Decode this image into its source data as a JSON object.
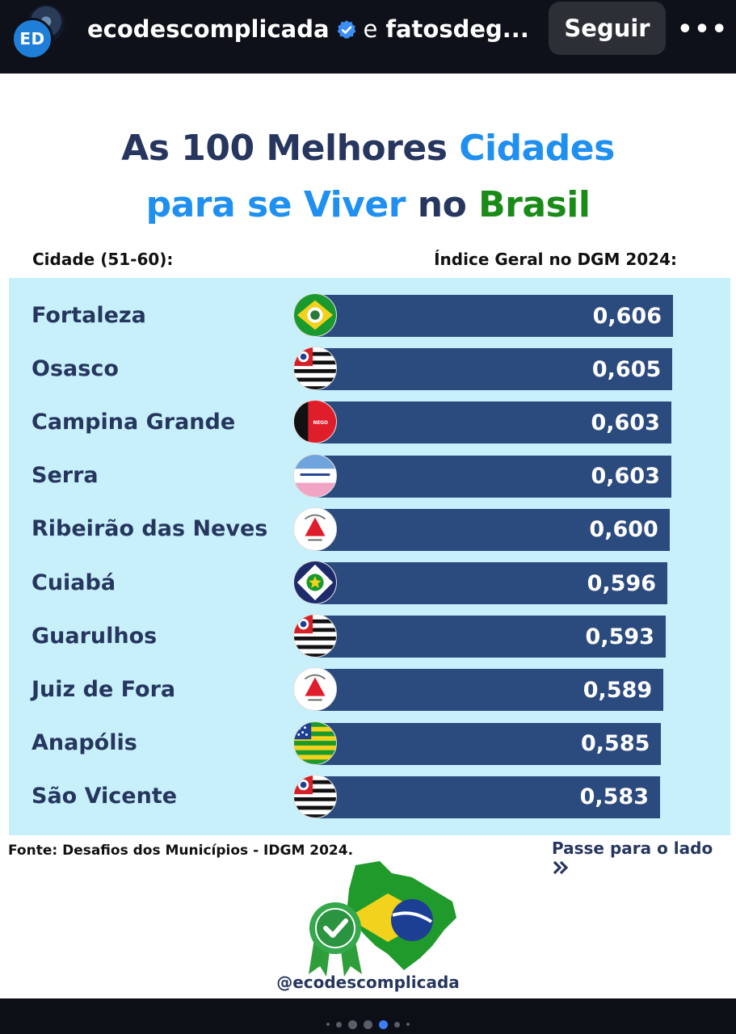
{
  "header": {
    "avatar_text": "ED",
    "account_name": "ecodescomplicada",
    "connector": "e",
    "collaborator": "fatosdeg...",
    "follow_label": "Seguir",
    "more_label": "•••"
  },
  "post": {
    "title_line1_a": "As 100 Melhores",
    "title_line1_b": "Cidades",
    "title_line2_a": "para se Viver",
    "title_line2_b": "no",
    "title_line2_c": "Brasil",
    "col_city": "Cidade (51-60):",
    "col_index": "Índice Geral no DGM 2024:",
    "source": "Fonte: Desafios dos Municípios - IDGM 2024.",
    "swipe": "Passe para o lado",
    "handle": "@ecodescomplicada"
  },
  "chart_data": {
    "type": "bar",
    "categories": [
      "Fortaleza",
      "Osasco",
      "Campina Grande",
      "Serra",
      "Ribeirão das Neves",
      "Cuiabá",
      "Guarulhos",
      "Juiz de Fora",
      "Anapólis",
      "São Vicente"
    ],
    "values": [
      0.606,
      0.605,
      0.603,
      0.603,
      0.6,
      0.596,
      0.593,
      0.589,
      0.585,
      0.583
    ],
    "value_labels": [
      "0,606",
      "0,605",
      "0,603",
      "0,603",
      "0,600",
      "0,596",
      "0,593",
      "0,589",
      "0,585",
      "0,583"
    ],
    "flags": [
      "ceara",
      "sao-paulo",
      "paraiba",
      "espirito-santo",
      "minas-gerais",
      "mato-grosso",
      "sao-paulo",
      "minas-gerais",
      "goias",
      "sao-paulo"
    ]
  },
  "colors": {
    "bar": "#2b4a7e",
    "panel": "#c7f0fb",
    "title_dark": "#26365f",
    "title_blue": "#1f8ff0",
    "title_green": "#1a8a19"
  },
  "carousel": {
    "count": 7,
    "active": 4
  }
}
